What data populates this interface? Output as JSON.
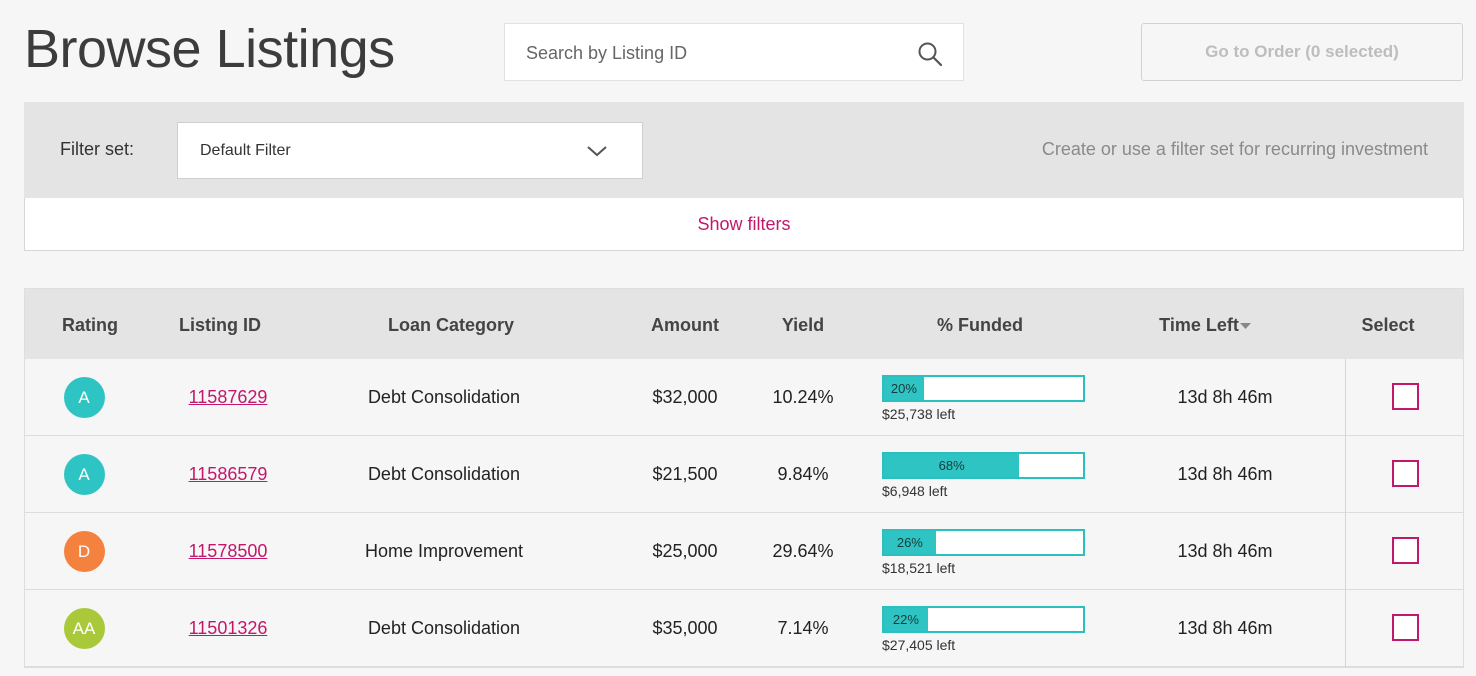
{
  "header": {
    "title": "Browse Listings",
    "search_placeholder": "Search by Listing ID",
    "order_button": "Go to Order (0 selected)"
  },
  "filters": {
    "label": "Filter set:",
    "selected": "Default Filter",
    "hint": "Create or use a filter set for recurring investment",
    "show_filters": "Show filters"
  },
  "table": {
    "columns": [
      "Rating",
      "Listing ID",
      "Loan Category",
      "Amount",
      "Yield",
      "% Funded",
      "Time Left",
      "Select"
    ],
    "rows": [
      {
        "rating": "A",
        "rating_color": "#2ec4c4",
        "listing_id": "11587629",
        "category": "Debt Consolidation",
        "amount": "$32,000",
        "yield": "10.24%",
        "funded_pct": "20%",
        "funded_value": 20,
        "left": "$25,738 left",
        "time_left": "13d 8h 46m"
      },
      {
        "rating": "A",
        "rating_color": "#2ec4c4",
        "listing_id": "11586579",
        "category": "Debt Consolidation",
        "amount": "$21,500",
        "yield": "9.84%",
        "funded_pct": "68%",
        "funded_value": 68,
        "left": "$6,948 left",
        "time_left": "13d 8h 46m"
      },
      {
        "rating": "D",
        "rating_color": "#f5813f",
        "listing_id": "11578500",
        "category": "Home Improvement",
        "amount": "$25,000",
        "yield": "29.64%",
        "funded_pct": "26%",
        "funded_value": 26,
        "left": "$18,521 left",
        "time_left": "13d 8h 46m"
      },
      {
        "rating": "AA",
        "rating_color": "#a9c93a",
        "listing_id": "11501326",
        "category": "Debt Consolidation",
        "amount": "$35,000",
        "yield": "7.14%",
        "funded_pct": "22%",
        "funded_value": 22,
        "left": "$27,405 left",
        "time_left": "13d 8h 46m"
      }
    ]
  },
  "colors": {
    "accent": "#c2186b",
    "teal": "#2ec4c4"
  }
}
